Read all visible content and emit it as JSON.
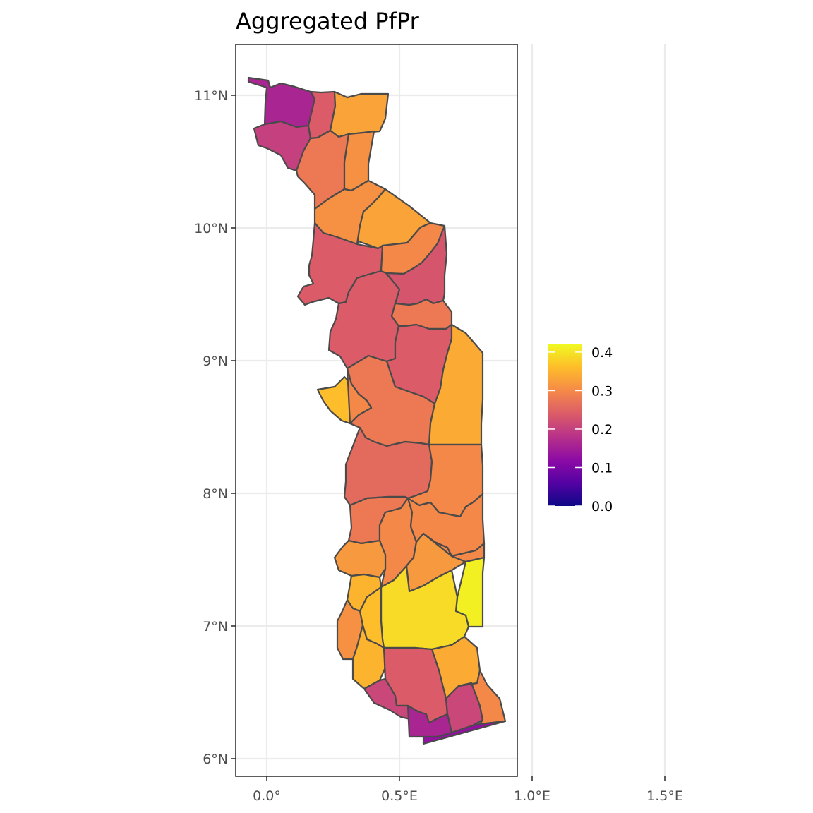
{
  "chart_data": {
    "type": "choropleth",
    "title": "Aggregated PfPr",
    "x_axis": {
      "tick_labels": [
        "0.0°",
        "0.5°E",
        "1.0°E",
        "1.5°E"
      ],
      "tick_values": [
        0.0,
        0.5,
        1.0,
        1.5
      ],
      "range": [
        -0.12,
        1.96
      ]
    },
    "y_axis": {
      "tick_labels": [
        "6°N",
        "7°N",
        "8°N",
        "9°N",
        "10°N",
        "11°N"
      ],
      "tick_values": [
        6,
        7,
        8,
        9,
        10,
        11
      ],
      "range": [
        5.86,
        11.38
      ]
    },
    "grid": true,
    "legend": {
      "position": "right",
      "colorscale": "plasma",
      "range": [
        0.0,
        0.42
      ],
      "tick_labels": [
        "0.0",
        "0.1",
        "0.2",
        "0.3",
        "0.4"
      ],
      "tick_values": [
        0.0,
        0.1,
        0.2,
        0.3,
        0.4
      ]
    },
    "colors": {
      "plasma_stops": [
        "#0d0887",
        "#5302a3",
        "#8b0aa5",
        "#b83289",
        "#db5c68",
        "#f48849",
        "#febd2a",
        "#f0f921"
      ],
      "border": "#4a4a4a",
      "panel_border": "#333333",
      "grid": "#ebebeb"
    },
    "regions": [
      {
        "id": "north-west-1",
        "value": 0.16
      },
      {
        "id": "north-west-2",
        "value": 0.2
      },
      {
        "id": "north-strip",
        "value": 0.24
      },
      {
        "id": "north-east-top",
        "value": 0.33
      },
      {
        "id": "north-central-1",
        "value": 0.28
      },
      {
        "id": "north-central-2",
        "value": 0.31
      },
      {
        "id": "north-central-3",
        "value": 0.31
      },
      {
        "id": "north-central-4",
        "value": 0.33
      },
      {
        "id": "kara-west",
        "value": 0.24
      },
      {
        "id": "kara-1",
        "value": 0.3
      },
      {
        "id": "kara-2",
        "value": 0.23
      },
      {
        "id": "kara-3",
        "value": 0.24
      },
      {
        "id": "kara-4",
        "value": 0.28
      },
      {
        "id": "kara-5",
        "value": 0.24
      },
      {
        "id": "kara-6",
        "value": 0.28
      },
      {
        "id": "central-east",
        "value": 0.34
      },
      {
        "id": "central-west",
        "value": 0.36
      },
      {
        "id": "central-1",
        "value": 0.3
      },
      {
        "id": "plateaux-north-1",
        "value": 0.26
      },
      {
        "id": "plateaux-east-1",
        "value": 0.3
      },
      {
        "id": "plateaux-2",
        "value": 0.28
      },
      {
        "id": "plateaux-3",
        "value": 0.3
      },
      {
        "id": "plateaux-4",
        "value": 0.3
      },
      {
        "id": "plateaux-5",
        "value": 0.32
      },
      {
        "id": "plateaux-6",
        "value": 0.32
      },
      {
        "id": "plateaux-east-2",
        "value": 0.3
      },
      {
        "id": "plateaux-7",
        "value": 0.35
      },
      {
        "id": "east-bright",
        "value": 0.41
      },
      {
        "id": "plateaux-south-big",
        "value": 0.39
      },
      {
        "id": "plateaux-8",
        "value": 0.36
      },
      {
        "id": "plateaux-9",
        "value": 0.31
      },
      {
        "id": "plateaux-10",
        "value": 0.35
      },
      {
        "id": "maritime-1",
        "value": 0.34
      },
      {
        "id": "maritime-2",
        "value": 0.24
      },
      {
        "id": "maritime-3",
        "value": 0.21
      },
      {
        "id": "maritime-4",
        "value": 0.21
      },
      {
        "id": "maritime-5",
        "value": 0.3
      },
      {
        "id": "lome-1",
        "value": 0.16
      },
      {
        "id": "lome-2",
        "value": 0.13
      }
    ]
  }
}
